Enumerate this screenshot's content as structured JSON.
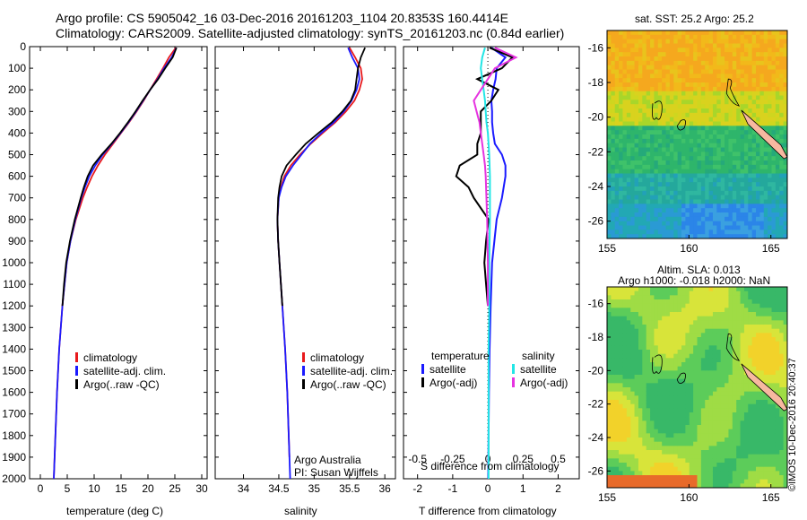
{
  "header": {
    "line1": "Argo profile: CS 5905042_16 03-Dec-2016 20161203_1104 20.8353S 160.4414E",
    "line2": "Climatology: CARS2009. Satellite-adjusted climatology: synTS_20161203.nc (0.84d earlier)"
  },
  "colors": {
    "climatology": "#e8191c",
    "satellite": "#1a1aff",
    "argo": "#000000",
    "sal_satellite": "#22e6e6",
    "sal_argo": "#e633e0"
  },
  "panel_temp": {
    "xlabel": "temperature (deg C)",
    "legend": [
      "climatology",
      "satellite-adj. clim.",
      "Argo(..raw -QC)"
    ]
  },
  "panel_sal": {
    "xlabel": "salinity",
    "legend": [
      "climatology",
      "satellite-adj. clim.",
      "Argo(..raw -QC)"
    ],
    "credit1": "Argo Australia",
    "credit2": "PI: Susan Wijffels"
  },
  "panel_diff": {
    "xlabel": "T difference from climatology",
    "xlabel_top": "S difference from climatology",
    "legend_t_title": "temperature",
    "legend_s_title": "salinity",
    "legend_t": [
      "satellite",
      "Argo(-adj)"
    ],
    "legend_s": [
      "satellite",
      "Argo(-adj)"
    ]
  },
  "map_sst": {
    "title": "sat. SST: 25.2 Argo: 25.2"
  },
  "map_sla": {
    "title1": "Altim. SLA: 0.013",
    "title2": "Argo h1000: -0.018 h2000: NaN"
  },
  "stamp": "©IMOS 10-Dec-2016 20:40:37",
  "chart_data": [
    {
      "type": "line",
      "title": "",
      "xlabel": "temperature (deg C)",
      "ylabel": "",
      "xlim": [
        -2,
        31
      ],
      "ylim": [
        2000,
        0
      ],
      "x_ticks": [
        0,
        5,
        10,
        15,
        20,
        25,
        30
      ],
      "y_ticks": [
        0,
        100,
        200,
        300,
        400,
        500,
        600,
        700,
        800,
        900,
        1000,
        1100,
        1200,
        1300,
        1400,
        1500,
        1600,
        1700,
        1800,
        1900,
        2000
      ],
      "series": [
        {
          "name": "climatology",
          "depth": [
            5,
            50,
            100,
            150,
            200,
            250,
            300,
            350,
            400,
            450,
            500,
            550,
            600,
            650,
            700,
            800,
            900,
            1000,
            1200,
            1400,
            1600,
            1800,
            2000
          ],
          "values": [
            25.2,
            23.9,
            22.8,
            21.6,
            20.4,
            19.2,
            17.9,
            16.5,
            15.0,
            13.5,
            12.0,
            10.7,
            9.6,
            8.7,
            7.9,
            6.6,
            5.6,
            4.9,
            4.1,
            3.5,
            3.1,
            2.8,
            2.5
          ]
        },
        {
          "name": "satellite-adj. clim.",
          "depth": [
            5,
            50,
            100,
            150,
            200,
            250,
            300,
            350,
            400,
            450,
            500,
            550,
            600,
            650,
            700,
            800,
            900,
            1000,
            1200,
            1400,
            1600,
            1800,
            2000
          ],
          "values": [
            25.3,
            24.4,
            23.0,
            21.8,
            20.4,
            19.1,
            17.8,
            16.4,
            14.9,
            13.3,
            11.6,
            10.2,
            9.1,
            8.3,
            7.6,
            6.5,
            5.6,
            4.9,
            4.1,
            3.5,
            3.1,
            2.8,
            2.5
          ]
        },
        {
          "name": "Argo(..raw -QC)",
          "depth": [
            5,
            50,
            100,
            150,
            200,
            250,
            300,
            350,
            400,
            450,
            500,
            550,
            600,
            650,
            700,
            800,
            900,
            1000,
            1100,
            1200
          ],
          "values": [
            25.3,
            24.6,
            23.2,
            21.9,
            20.4,
            19.0,
            17.7,
            16.3,
            14.8,
            13.2,
            11.4,
            9.8,
            8.8,
            8.1,
            7.5,
            6.4,
            5.5,
            4.8,
            4.4,
            4.1
          ]
        }
      ]
    },
    {
      "type": "line",
      "title": "",
      "xlabel": "salinity",
      "ylabel": "",
      "xlim": [
        33.6,
        36.15
      ],
      "ylim": [
        2000,
        0
      ],
      "x_ticks": [
        34,
        34.5,
        35,
        35.5,
        36
      ],
      "series": [
        {
          "name": "climatology",
          "depth": [
            5,
            50,
            100,
            150,
            200,
            250,
            300,
            350,
            400,
            450,
            500,
            550,
            600,
            650,
            700,
            800,
            900,
            1000,
            1200,
            1400,
            1600,
            1800,
            1900
          ],
          "values": [
            35.5,
            35.58,
            35.66,
            35.68,
            35.64,
            35.57,
            35.45,
            35.3,
            35.12,
            34.95,
            34.8,
            34.67,
            34.58,
            34.53,
            34.5,
            34.48,
            34.49,
            34.51,
            34.55,
            34.59,
            34.62,
            34.64,
            34.65
          ]
        },
        {
          "name": "satellite-adj. clim.",
          "depth": [
            5,
            50,
            100,
            150,
            200,
            250,
            300,
            350,
            400,
            450,
            500,
            550,
            600,
            650,
            700,
            800,
            900,
            1000,
            1200,
            1400,
            1600,
            1800,
            2000
          ],
          "values": [
            35.48,
            35.54,
            35.62,
            35.64,
            35.6,
            35.53,
            35.42,
            35.28,
            35.1,
            34.94,
            34.82,
            34.7,
            34.6,
            34.54,
            34.5,
            34.48,
            34.49,
            34.51,
            34.55,
            34.59,
            34.62,
            34.64,
            34.66
          ]
        },
        {
          "name": "Argo(..raw -QC)",
          "depth": [
            5,
            50,
            100,
            150,
            200,
            250,
            300,
            350,
            400,
            450,
            500,
            550,
            600,
            650,
            700,
            800,
            900,
            1000,
            1100,
            1200
          ],
          "values": [
            35.72,
            35.66,
            35.62,
            35.6,
            35.58,
            35.52,
            35.4,
            35.25,
            35.06,
            34.88,
            34.74,
            34.61,
            34.54,
            34.51,
            34.49,
            34.48,
            34.49,
            34.51,
            34.53,
            34.55
          ]
        }
      ]
    },
    {
      "type": "line",
      "title": "",
      "xlabel": "T difference from climatology",
      "xlabel_top": "S difference from climatology",
      "xlim": [
        -2.4,
        2.6
      ],
      "ylim": [
        2000,
        0
      ],
      "x_ticks": [
        -2,
        -1,
        0,
        1,
        2
      ],
      "x_ticks_top": [
        "-0.5",
        "-0.25",
        "0",
        "0.25",
        "0.5"
      ],
      "series": [
        {
          "name": "temperature satellite",
          "depth": [
            5,
            50,
            100,
            150,
            200,
            250,
            300,
            350,
            400,
            450,
            500,
            550,
            600,
            700,
            800,
            1000,
            1200,
            1400,
            1600,
            1800,
            2000
          ],
          "values": [
            0.1,
            0.5,
            0.25,
            0.22,
            0.15,
            0.1,
            0.12,
            0.12,
            0.15,
            0.2,
            0.4,
            0.5,
            0.5,
            0.4,
            0.25,
            0.12,
            0.08,
            0.05,
            0.03,
            0.02,
            0.01
          ]
        },
        {
          "name": "temperature Argo(-adj)",
          "depth": [
            5,
            50,
            100,
            150,
            200,
            250,
            300,
            350,
            400,
            450,
            500,
            550,
            600,
            650,
            700,
            800,
            900,
            1000,
            1100,
            1200
          ],
          "values": [
            0.05,
            0.7,
            0.4,
            -0.3,
            0.3,
            0.1,
            -0.2,
            -0.2,
            -0.2,
            -0.3,
            -0.3,
            -0.8,
            -0.9,
            -0.55,
            -0.4,
            0.02,
            -0.05,
            -0.1,
            -0.05,
            0.0
          ]
        },
        {
          "name": "salinity satellite",
          "depth": [
            5,
            50,
            100,
            150,
            200,
            250,
            300,
            350,
            400,
            450,
            500,
            600,
            800,
            1000,
            1200,
            1400,
            1600,
            1800,
            2000
          ],
          "values": [
            -0.02,
            -0.04,
            -0.05,
            -0.04,
            -0.03,
            -0.02,
            -0.015,
            -0.01,
            0.0,
            0.005,
            0.01,
            0.015,
            0.015,
            0.01,
            0.01,
            0.005,
            0.005,
            0.005,
            0.005
          ]
        },
        {
          "name": "salinity Argo(-adj)",
          "depth": [
            5,
            50,
            100,
            150,
            200,
            250,
            300,
            350,
            400,
            450,
            500,
            550,
            600,
            700,
            800,
            1000,
            1100,
            1200
          ],
          "values": [
            0.05,
            0.2,
            0.05,
            0.0,
            -0.05,
            -0.1,
            -0.08,
            -0.06,
            -0.05,
            -0.04,
            -0.03,
            -0.02,
            -0.015,
            -0.01,
            -0.005,
            0.0,
            0.0,
            0.0
          ]
        }
      ]
    },
    {
      "type": "heatmap",
      "title": "sat. SST: 25.2 Argo: 25.2",
      "xlim": [
        155,
        166
      ],
      "ylim": [
        -27,
        -15
      ],
      "x_ticks": [
        155,
        160,
        165
      ],
      "y_ticks": [
        -16,
        -18,
        -20,
        -22,
        -24,
        -26
      ]
    },
    {
      "type": "heatmap",
      "title": "Altim. SLA: 0.013 / Argo h1000: -0.018 h2000: NaN",
      "xlim": [
        155,
        166
      ],
      "ylim": [
        -27,
        -15
      ],
      "x_ticks": [
        155,
        160,
        165
      ],
      "y_ticks": [
        -16,
        -18,
        -20,
        -22,
        -24,
        -26
      ]
    }
  ]
}
